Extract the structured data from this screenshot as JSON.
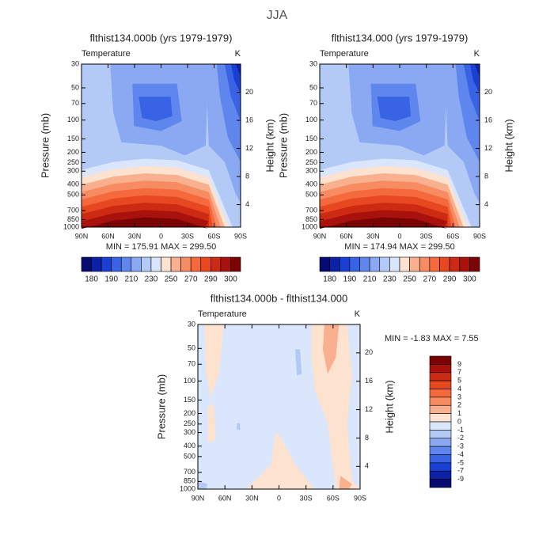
{
  "title": "JJA",
  "chart_data": [
    {
      "type": "contour",
      "title": "flthist134.000b (yrs 1979-1979)",
      "variable": "Temperature",
      "units": "K",
      "ylabel": "Pressure (mb)",
      "y2label": "Height (km)",
      "stats": "MIN = 175.91   MAX = 299.50",
      "xlim": [
        90,
        -90
      ],
      "xticks": [
        {
          "value": 90,
          "label": "90N"
        },
        {
          "value": 60,
          "label": "60N"
        },
        {
          "value": 30,
          "label": "30N"
        },
        0,
        {
          "value": -30,
          "label": "30S"
        },
        {
          "value": -60,
          "label": "60S"
        },
        {
          "value": -90,
          "label": "90S"
        }
      ],
      "ylim": [
        1000,
        30
      ],
      "yscale": "log",
      "yticks": [
        30,
        50,
        70,
        100,
        150,
        200,
        250,
        300,
        400,
        500,
        700,
        850,
        1000
      ],
      "y2lim": [
        0.8,
        24
      ],
      "y2ticks": [
        4,
        8,
        12,
        16,
        20
      ],
      "colorbar": {
        "orientation": "horizontal",
        "ticks": [
          180,
          190,
          210,
          230,
          250,
          270,
          290,
          300
        ],
        "colors": [
          "#050b70",
          "#0b22a6",
          "#1a3fd4",
          "#3863e4",
          "#5f86ec",
          "#8aa9f2",
          "#b4caf6",
          "#d9e6fb",
          "#fde2cf",
          "#f9b08f",
          "#f78c62",
          "#f46a3c",
          "#e8481f",
          "#cc2a12",
          "#a8110c",
          "#7a0403"
        ]
      }
    },
    {
      "type": "contour",
      "title": "flthist134.000 (yrs 1979-1979)",
      "variable": "Temperature",
      "units": "K",
      "ylabel": "Pressure (mb)",
      "y2label": "Height (km)",
      "stats": "MIN = 174.94   MAX = 299.50",
      "xlim": [
        90,
        -90
      ],
      "xticks": [
        {
          "value": 90,
          "label": "90N"
        },
        {
          "value": 60,
          "label": "60N"
        },
        {
          "value": 30,
          "label": "30N"
        },
        0,
        {
          "value": -30,
          "label": "30S"
        },
        {
          "value": -60,
          "label": "60S"
        },
        {
          "value": -90,
          "label": "90S"
        }
      ],
      "ylim": [
        1000,
        30
      ],
      "yscale": "log",
      "yticks": [
        30,
        50,
        70,
        100,
        150,
        200,
        250,
        300,
        400,
        500,
        700,
        850,
        1000
      ],
      "y2lim": [
        0.8,
        24
      ],
      "y2ticks": [
        4,
        8,
        12,
        16,
        20
      ],
      "colorbar": {
        "orientation": "horizontal",
        "ticks": [
          180,
          190,
          210,
          230,
          250,
          270,
          290,
          300
        ],
        "colors": [
          "#050b70",
          "#0b22a6",
          "#1a3fd4",
          "#3863e4",
          "#5f86ec",
          "#8aa9f2",
          "#b4caf6",
          "#d9e6fb",
          "#fde2cf",
          "#f9b08f",
          "#f78c62",
          "#f46a3c",
          "#e8481f",
          "#cc2a12",
          "#a8110c",
          "#7a0403"
        ]
      }
    },
    {
      "type": "contour",
      "title": "flthist134.000b - flthist134.000",
      "variable": "Temperature",
      "units": "K",
      "ylabel": "Pressure (mb)",
      "y2label": "Height (km)",
      "stats": "MIN =  -1.83   MAX =   7.55",
      "xlim": [
        90,
        -90
      ],
      "xticks": [
        {
          "value": 90,
          "label": "90N"
        },
        {
          "value": 60,
          "label": "60N"
        },
        {
          "value": 30,
          "label": "30N"
        },
        0,
        {
          "value": -30,
          "label": "30S"
        },
        {
          "value": -60,
          "label": "60S"
        },
        {
          "value": -90,
          "label": "90S"
        }
      ],
      "ylim": [
        1000,
        30
      ],
      "yscale": "log",
      "yticks": [
        30,
        50,
        70,
        100,
        150,
        200,
        250,
        300,
        400,
        500,
        700,
        850,
        1000
      ],
      "y2lim": [
        0.8,
        24
      ],
      "y2ticks": [
        4,
        8,
        12,
        16,
        20
      ],
      "colorbar": {
        "orientation": "vertical",
        "ticks": [
          9,
          7,
          5,
          4,
          3,
          2,
          1,
          0,
          -1,
          -2,
          -3,
          -4,
          -5,
          -7,
          -9
        ],
        "colors": [
          "#7a0403",
          "#a8110c",
          "#cc2a12",
          "#e8481f",
          "#f46a3c",
          "#f78c62",
          "#f9b08f",
          "#fde2cf",
          "#d9e6fb",
          "#b4caf6",
          "#8aa9f2",
          "#5f86ec",
          "#3863e4",
          "#1a3fd4",
          "#0b22a6",
          "#050b70"
        ]
      }
    }
  ]
}
